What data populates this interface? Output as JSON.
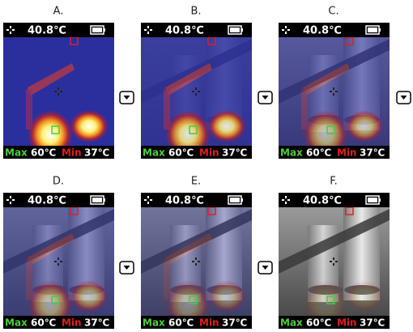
{
  "panels": [
    {
      "label": "A.",
      "temperature": "40.8℃",
      "max_label": "Max",
      "max_value": "60℃",
      "min_label": "Min",
      "min_value": "37℃"
    },
    {
      "label": "B.",
      "temperature": "40.8℃",
      "max_label": "Max",
      "max_value": "60℃",
      "min_label": "Min",
      "min_value": "37℃"
    },
    {
      "label": "C.",
      "temperature": "40.8℃",
      "max_label": "Max",
      "max_value": "60℃",
      "min_label": "Min",
      "min_value": "37℃"
    },
    {
      "label": "D.",
      "temperature": "40.8℃",
      "max_label": "Max",
      "max_value": "60℃",
      "min_label": "Min",
      "min_value": "37℃"
    },
    {
      "label": "E.",
      "temperature": "40.8℃",
      "max_label": "Max",
      "max_value": "60℃",
      "min_label": "Min",
      "min_value": "37℃"
    },
    {
      "label": "F.",
      "temperature": "40.8℃",
      "max_label": "Max",
      "max_value": "60℃",
      "min_label": "Min",
      "min_value": "37℃"
    }
  ]
}
